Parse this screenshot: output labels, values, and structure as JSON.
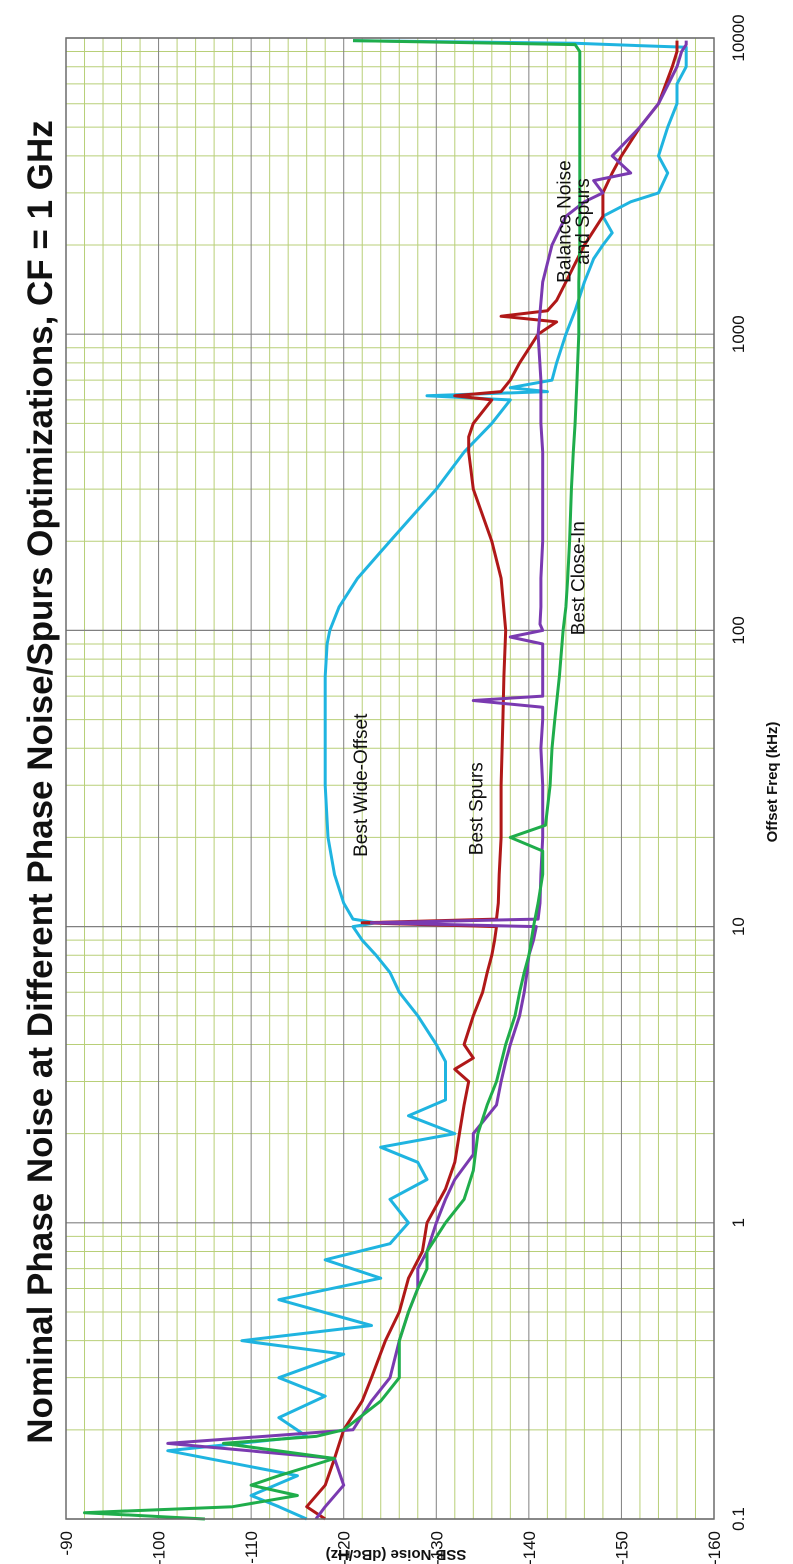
{
  "chart_data": {
    "type": "line",
    "title": "Nominal Phase Noise at Different Phase Noise/Spurs Optimizations, CF = 1 GHz",
    "xlabel": "Offset Freq (kHz)",
    "ylabel": "SSB Noise (dBc/Hz)",
    "x_scale": "log",
    "xlim": [
      0.1,
      10000
    ],
    "ylim": [
      -160,
      -90
    ],
    "x_ticks": [
      "0.1",
      "1",
      "10",
      "100",
      "1000",
      "10000"
    ],
    "y_ticks": [
      "-90",
      "-100",
      "-110",
      "-120",
      "-130",
      "-140",
      "-150",
      "-160"
    ],
    "orientation": "rotated 90° clockwise",
    "grid": true,
    "colors": {
      "Best Wide-Offset": "#1fb4e0",
      "Best Spurs": "#b01818",
      "Balance Noise and Spurs": "#7a3ab0",
      "Best Close-In": "#1fad4b",
      "major_grid": "#808080",
      "minor_grid": "#b8cf78"
    },
    "annotations": [
      {
        "text": "Best Wide-Offset",
        "x": 30,
        "y": -122.5
      },
      {
        "text": "Best Spurs",
        "x": 25,
        "y": -135
      },
      {
        "text": "Balance Noise",
        "x": 2400,
        "y": -144.5
      },
      {
        "text": "and Spurs",
        "x": 2400,
        "y": -146.5
      },
      {
        "text": "Best Close-In",
        "x": 150,
        "y": -146
      }
    ],
    "series": [
      {
        "name": "Best Wide-Offset",
        "x": [
          0.1,
          0.11,
          0.12,
          0.14,
          0.17,
          0.19,
          0.22,
          0.26,
          0.3,
          0.36,
          0.4,
          0.45,
          0.55,
          0.65,
          0.75,
          0.85,
          1,
          1.2,
          1.4,
          1.6,
          1.8,
          2,
          2.3,
          2.6,
          3,
          3.5,
          4,
          5,
          6,
          7,
          8,
          9,
          10,
          10.3,
          10.6,
          12,
          15,
          20,
          30,
          50,
          70,
          90,
          100,
          120,
          150,
          200,
          300,
          400,
          500,
          600,
          620,
          640,
          660,
          700,
          800,
          1000,
          1200,
          1500,
          1800,
          2000,
          2200,
          2500,
          2800,
          3000,
          3500,
          4000,
          5000,
          6000,
          7000,
          8000,
          9000,
          9300,
          9600,
          9800
        ],
        "y": [
          -116,
          -113,
          -110,
          -115,
          -101,
          -116,
          -113,
          -118,
          -113,
          -120,
          -109,
          -123,
          -113,
          -124,
          -118,
          -125,
          -127,
          -125,
          -129,
          -128,
          -124,
          -132,
          -127,
          -131,
          -131,
          -131,
          -130,
          -128,
          -126,
          -125,
          -123.5,
          -122,
          -121,
          -123.5,
          -121,
          -120,
          -119,
          -118.3,
          -118,
          -118,
          -118,
          -118.2,
          -118.5,
          -119.5,
          -121.5,
          -125,
          -130,
          -133,
          -136,
          -138,
          -129,
          -142,
          -138,
          -142.5,
          -143,
          -144,
          -145,
          -146,
          -147,
          -148,
          -149,
          -148,
          -151,
          -154,
          -155,
          -154,
          -155,
          -156,
          -156,
          -157,
          -157,
          -157,
          -145,
          -121
        ]
      },
      {
        "name": "Best Spurs",
        "x": [
          0.1,
          0.11,
          0.13,
          0.16,
          0.2,
          0.25,
          0.3,
          0.4,
          0.5,
          0.65,
          0.8,
          1,
          1.3,
          1.6,
          2,
          2.5,
          3,
          3.3,
          3.6,
          4,
          5,
          6,
          7,
          8,
          9,
          10,
          10.3,
          10.6,
          12,
          15,
          20,
          30,
          50,
          70,
          100,
          150,
          200,
          300,
          400,
          450,
          500,
          600,
          620,
          640,
          700,
          800,
          1000,
          1100,
          1150,
          1200,
          1300,
          1500,
          2000,
          2500,
          3000,
          3500,
          4000,
          5000,
          6000,
          8000,
          9000,
          9500,
          9800
        ],
        "y": [
          -118,
          -116,
          -118,
          -119,
          -120,
          -122,
          -123,
          -124.5,
          -126,
          -127,
          -128.5,
          -129,
          -131,
          -132,
          -132.5,
          -133,
          -133.5,
          -132,
          -134,
          -133,
          -134,
          -135,
          -135.5,
          -136,
          -136.3,
          -136.5,
          -122,
          -136.5,
          -136.7,
          -136.8,
          -137,
          -137,
          -137.2,
          -137.3,
          -137.5,
          -137,
          -136,
          -134,
          -133.5,
          -133.5,
          -134,
          -136,
          -132,
          -137,
          -138,
          -139,
          -141,
          -143,
          -137,
          -142,
          -143,
          -144,
          -146,
          -148,
          -148,
          -149,
          -150,
          -152,
          -154,
          -155.5,
          -156,
          -156,
          -156
        ]
      },
      {
        "name": "Balance Noise and Spurs",
        "x": [
          0.1,
          0.11,
          0.13,
          0.16,
          0.18,
          0.2,
          0.25,
          0.3,
          0.4,
          0.5,
          0.6,
          0.7,
          0.8,
          1,
          1.2,
          1.4,
          1.7,
          2,
          2.5,
          3,
          3.5,
          4,
          5,
          6,
          7,
          8,
          9,
          10,
          10.3,
          10.6,
          12,
          15,
          20,
          30,
          40,
          50,
          55,
          58,
          60,
          62,
          70,
          90,
          95,
          100,
          105,
          120,
          150,
          200,
          300,
          400,
          500,
          700,
          1000,
          1500,
          2000,
          2500,
          2800,
          3000,
          3300,
          3500,
          4000,
          5000,
          6000,
          8000,
          9000,
          9500,
          9800
        ],
        "y": [
          -117,
          -118,
          -120,
          -119,
          -101,
          -121,
          -123,
          -125,
          -126,
          -127,
          -128,
          -128,
          -129,
          -130,
          -131,
          -132,
          -134,
          -134,
          -136.5,
          -137,
          -137.5,
          -138,
          -139,
          -139.5,
          -139.8,
          -140,
          -140.5,
          -140.8,
          -123,
          -141,
          -141.2,
          -141.3,
          -141.5,
          -141.5,
          -141.3,
          -141.5,
          -141.5,
          -134,
          -141.5,
          -141.5,
          -141.5,
          -141.5,
          -138,
          -141.5,
          -141.2,
          -141.3,
          -141.3,
          -141.5,
          -141.5,
          -141.5,
          -141.3,
          -141.3,
          -141,
          -141.5,
          -142.5,
          -144,
          -146,
          -148,
          -147,
          -151,
          -149,
          -152,
          -154,
          -156,
          -156.5,
          -157,
          -157
        ]
      },
      {
        "name": "Best Close-In",
        "x": [
          0.1,
          0.105,
          0.11,
          0.12,
          0.13,
          0.14,
          0.16,
          0.18,
          0.19,
          0.2,
          0.25,
          0.3,
          0.4,
          0.5,
          0.6,
          0.7,
          0.8,
          1,
          1.2,
          1.5,
          2,
          2.5,
          3,
          4,
          5,
          6,
          7,
          8,
          10,
          12,
          15,
          18,
          20,
          22,
          25,
          30,
          40,
          50,
          70,
          100,
          120,
          150,
          200,
          300,
          400,
          500,
          700,
          1000,
          1500,
          2000,
          3000,
          5000,
          7000,
          9000,
          9500,
          9800
        ],
        "y": [
          -105,
          -92,
          -108,
          -115,
          -110,
          -113,
          -119,
          -107,
          -117,
          -120,
          -124,
          -126,
          -126,
          -127,
          -128,
          -129,
          -129,
          -131,
          -133,
          -134,
          -134.5,
          -135.5,
          -136.5,
          -137.5,
          -138.5,
          -139,
          -139.5,
          -140,
          -140.5,
          -141,
          -141.5,
          -141.5,
          -138,
          -141.8,
          -142,
          -142.3,
          -142.5,
          -142.8,
          -143.3,
          -143.7,
          -144,
          -144.2,
          -144.4,
          -144.6,
          -144.8,
          -145,
          -145.2,
          -145.4,
          -145.4,
          -145.5,
          -145.5,
          -145.5,
          -145.5,
          -145.5,
          -145,
          -121
        ]
      }
    ]
  }
}
